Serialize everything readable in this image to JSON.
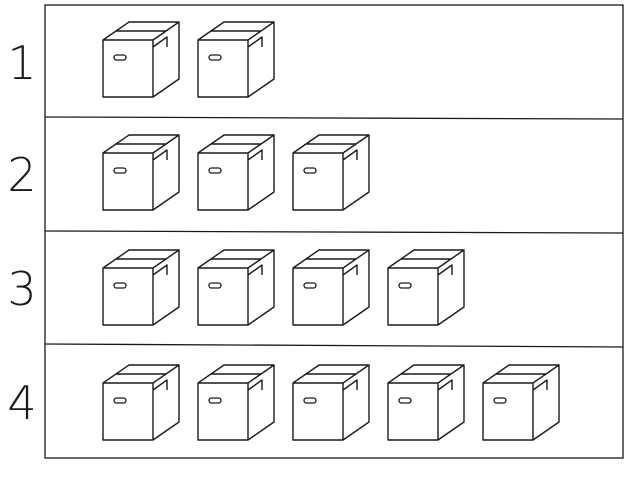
{
  "rows": [
    {
      "label": "1",
      "box_count": 2
    },
    {
      "label": "2",
      "box_count": 3
    },
    {
      "label": "3",
      "box_count": 4
    },
    {
      "label": "4",
      "box_count": 5
    }
  ],
  "box_icon": "cardboard-box-icon",
  "line_color": "#1a1a1a"
}
